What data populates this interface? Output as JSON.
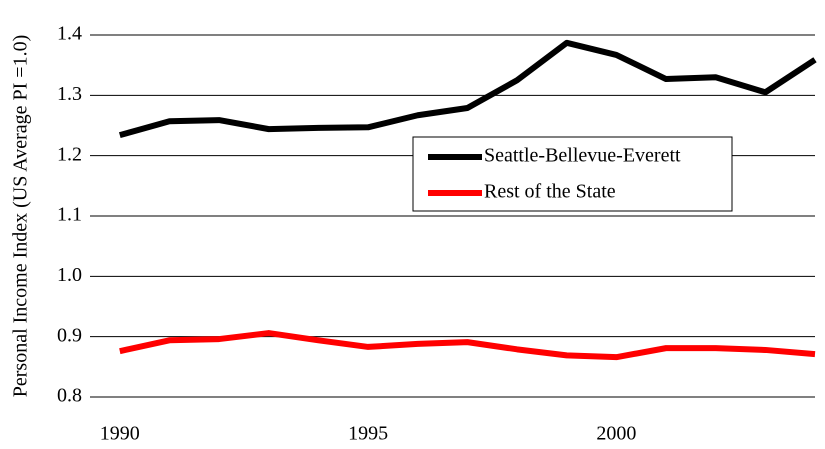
{
  "chart_data": {
    "type": "line",
    "y_label": "Personal Income Index (US Average PI =1.0)",
    "x": [
      1990,
      1991,
      1992,
      1993,
      1994,
      1995,
      1996,
      1997,
      1998,
      1999,
      2000,
      2001,
      2002,
      2003,
      2004
    ],
    "series": [
      {
        "name": "Seattle-Bellevue-Everett",
        "color": "#000000",
        "values": [
          1.234,
          1.257,
          1.259,
          1.244,
          1.246,
          1.247,
          1.267,
          1.279,
          1.325,
          1.387,
          1.367,
          1.327,
          1.33,
          1.305,
          1.359
        ]
      },
      {
        "name": "Rest of the State",
        "color": "#ff0000",
        "values": [
          0.876,
          0.894,
          0.896,
          0.906,
          0.894,
          0.883,
          0.888,
          0.891,
          0.879,
          0.869,
          0.866,
          0.881,
          0.881,
          0.878,
          0.871
        ]
      }
    ],
    "xlim": [
      1989.4,
      2004
    ],
    "xticks": [
      1990,
      1995,
      2000
    ],
    "ylim": [
      0.8,
      1.4
    ],
    "yticks": [
      0.8,
      0.9,
      {
        "value": 1,
        "label": "1.0"
      },
      1.1,
      1.2,
      1.3,
      1.4
    ],
    "grid": true
  }
}
